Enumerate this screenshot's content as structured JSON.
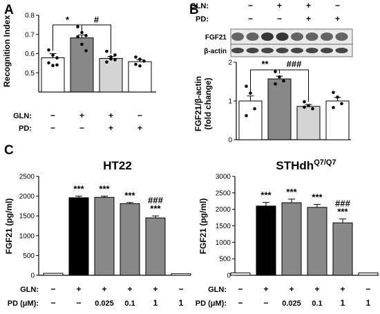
{
  "panels": {
    "A": "A",
    "B": "B",
    "C": "C"
  },
  "chart_data": [
    {
      "id": "panel-A",
      "type": "bar",
      "ylabel": "Recognition Index",
      "ylim": [
        0.4,
        0.8
      ],
      "yticks": [
        "0.5",
        "0.6",
        "0.7",
        "0.8"
      ],
      "conditions": [
        {
          "label": "GLN:",
          "values": [
            "−",
            "+",
            "+",
            "−"
          ]
        },
        {
          "label": "PD:",
          "values": [
            "−",
            "−",
            "+",
            "+"
          ]
        }
      ],
      "values": [
        0.578,
        0.682,
        0.575,
        0.558
      ],
      "errors": [
        0.022,
        0.015,
        0.01,
        0.01
      ],
      "fills": [
        "#ffffff",
        "#888888",
        "#d4d4d4",
        "#ffffff"
      ],
      "points": [
        [
          0.619,
          0.592,
          0.578,
          0.552,
          0.538,
          0.541
        ],
        [
          0.74,
          0.71,
          0.694,
          0.688,
          0.648,
          0.615
        ],
        [
          0.612,
          0.583,
          0.568,
          0.556,
          0.572,
          0.593
        ],
        [
          0.582,
          0.571,
          0.561,
          0.544,
          0.536
        ]
      ],
      "annotations": [
        {
          "text": "*",
          "from": 0,
          "to": 1
        },
        {
          "text": "#",
          "from": 1,
          "to": 2
        }
      ]
    },
    {
      "id": "panel-B",
      "type": "bar",
      "ylabel": "FGF21/β-actin\n(fold change)",
      "ylim": [
        0,
        2
      ],
      "yticks": [
        "0",
        "1",
        "2"
      ],
      "conditions": [
        {
          "label": "GLN:",
          "values": [
            "−",
            "+",
            "+",
            "−"
          ]
        },
        {
          "label": "PD:",
          "values": [
            "−",
            "−",
            "+",
            "+"
          ]
        }
      ],
      "blot_labels": [
        "FGF21",
        "β-actin"
      ],
      "values": [
        1.0,
        1.57,
        0.86,
        1.0
      ],
      "errors": [
        0.13,
        0.07,
        0.05,
        0.09
      ],
      "fills": [
        "#ffffff",
        "#888888",
        "#d4d4d4",
        "#ffffff"
      ],
      "points": [
        [
          1.38,
          1.2,
          0.8,
          0.62
        ],
        [
          1.76,
          1.62,
          1.52,
          1.44
        ],
        [
          0.98,
          0.88,
          0.8,
          0.84
        ],
        [
          1.22,
          1.1,
          0.93,
          0.83
        ]
      ],
      "annotations": [
        {
          "text": "**",
          "from": 0,
          "to": 1
        },
        {
          "text": "###",
          "from": 1,
          "to": 2
        }
      ]
    },
    {
      "id": "panel-C-HT22",
      "type": "bar",
      "title": "HT22",
      "ylabel": "FGF21 (pg/ml)",
      "ylim": [
        0,
        2500
      ],
      "yticks": [
        "0",
        "500",
        "1000",
        "1500",
        "2000",
        "2500"
      ],
      "conditions": [
        {
          "label": "GLN:",
          "values": [
            "−",
            "+",
            "+",
            "+",
            "+",
            "−"
          ]
        },
        {
          "label": "PD (μM):",
          "values": [
            "−",
            "−",
            "0.025",
            "0.1",
            "1",
            "1"
          ]
        }
      ],
      "values": [
        50,
        1960,
        1970,
        1810,
        1450,
        40
      ],
      "errors": [
        0,
        40,
        30,
        30,
        50,
        0
      ],
      "fills": [
        "#ffffff",
        "#000000",
        "#888888",
        "#888888",
        "#888888",
        "#ffffff"
      ],
      "stars": [
        "",
        "***",
        "***",
        "***",
        "***",
        ""
      ],
      "hashes": [
        "",
        "",
        "",
        "",
        "###",
        ""
      ]
    },
    {
      "id": "panel-C-STHdh",
      "type": "bar",
      "title": "STHdh",
      "title_sup": "Q7/Q7",
      "ylabel": "FGF21 (pg/ml)",
      "ylim": [
        0,
        3000
      ],
      "yticks": [
        "0",
        "500",
        "1000",
        "1500",
        "2000",
        "2500",
        "3000"
      ],
      "conditions": [
        {
          "label": "GLN:",
          "values": [
            "−",
            "+",
            "+",
            "+",
            "+",
            "−"
          ]
        },
        {
          "label": "PD (μM):",
          "values": [
            "−",
            "−",
            "0.025",
            "0.1",
            "1",
            "1"
          ]
        }
      ],
      "values": [
        70,
        2100,
        2200,
        2060,
        1590,
        70
      ],
      "errors": [
        0,
        110,
        110,
        90,
        120,
        0
      ],
      "fills": [
        "#ffffff",
        "#000000",
        "#888888",
        "#888888",
        "#888888",
        "#ffffff"
      ],
      "stars": [
        "",
        "***",
        "***",
        "***",
        "***",
        ""
      ],
      "hashes": [
        "",
        "",
        "",
        "",
        "###",
        ""
      ]
    }
  ]
}
